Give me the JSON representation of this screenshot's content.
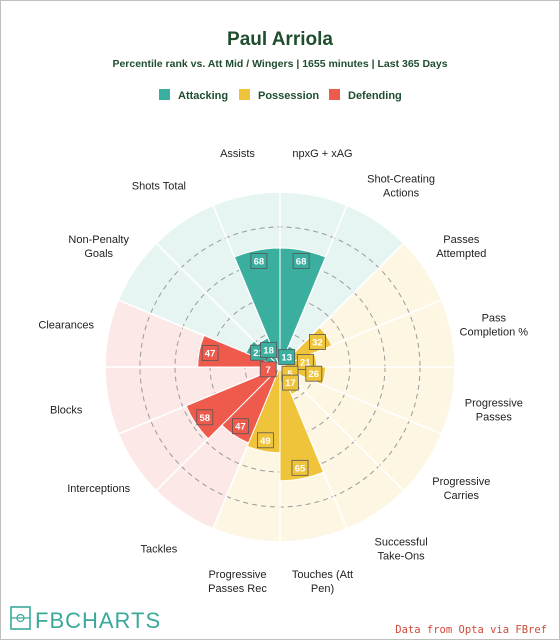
{
  "title": "Paul Arriola",
  "subtitle": "Percentile rank vs. Att Mid / Wingers | 1655 minutes | Last 365 Days",
  "legend": [
    {
      "label": "Attacking",
      "color": "#3aaf9f"
    },
    {
      "label": "Possession",
      "color": "#f0c43a"
    },
    {
      "label": "Defending",
      "color": "#ee5a4c"
    }
  ],
  "footer": {
    "logo": "FBCHARTS",
    "credit": "Data from Opta via FBref"
  },
  "chart_data": {
    "type": "polar-bar",
    "range": [
      0,
      100
    ],
    "grid": true,
    "legend_position": "top",
    "categories": [
      "npxG + xAG",
      "Shot-Creating Actions",
      "Passes Attempted",
      "Pass Completion %",
      "Progressive Passes",
      "Progressive Carries",
      "Successful Take-Ons",
      "Touches (Att Pen)",
      "Progressive Passes Rec",
      "Tackles",
      "Interceptions",
      "Blocks",
      "Clearances",
      "Non-Penalty Goals",
      "Shots Total",
      "Assists"
    ],
    "label_lines": [
      [
        "npxG + xAG"
      ],
      [
        "Shot-Creating",
        "Actions"
      ],
      [
        "Passes",
        "Attempted"
      ],
      [
        "Pass",
        "Completion %"
      ],
      [
        "Progressive",
        "Passes"
      ],
      [
        "Progressive",
        "Carries"
      ],
      [
        "Successful",
        "Take-Ons"
      ],
      [
        "Touches (Att",
        "Pen)"
      ],
      [
        "Progressive",
        "Passes Rec"
      ],
      [
        "Tackles"
      ],
      [
        "Interceptions"
      ],
      [
        "Blocks"
      ],
      [
        "Clearances"
      ],
      [
        "Non-Penalty",
        "Goals"
      ],
      [
        "Shots Total"
      ],
      [
        "Assists"
      ]
    ],
    "groups": [
      "Attacking",
      "Attacking",
      "Possession",
      "Possession",
      "Possession",
      "Possession",
      "Possession",
      "Possession",
      "Possession",
      "Defending",
      "Defending",
      "Defending",
      "Defending",
      "Attacking",
      "Attacking",
      "Attacking"
    ],
    "values": [
      68,
      13,
      32,
      21,
      26,
      5,
      17,
      65,
      49,
      47,
      58,
      7,
      47,
      21,
      18,
      68
    ]
  }
}
